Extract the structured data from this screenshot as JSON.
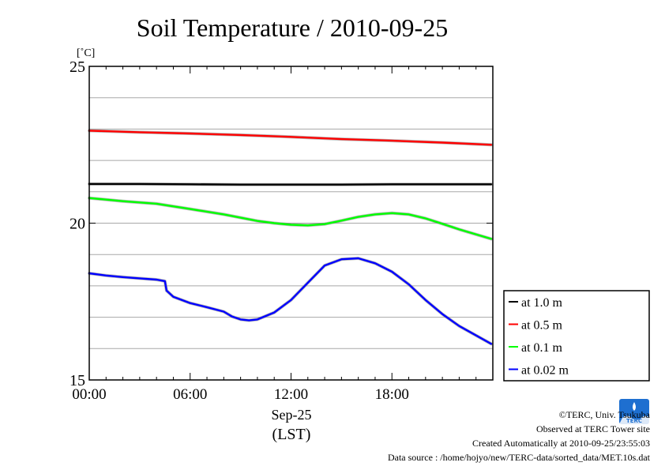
{
  "chart_data": {
    "type": "line",
    "title": "Soil Temperature / 2010-09-25",
    "ylabel": "[˚C]",
    "xlabel_date": "Sep-25",
    "xlabel_tz": "(LST)",
    "ylim": [
      15,
      25
    ],
    "xlim": [
      "00:00",
      "24:00"
    ],
    "y_ticks": [
      15,
      20,
      25
    ],
    "y_gridlines": [
      16,
      17,
      18,
      19,
      20,
      21,
      22,
      23,
      24
    ],
    "x_ticks": [
      "00:00",
      "06:00",
      "12:00",
      "18:00"
    ],
    "grid": true,
    "legend_position": "right",
    "series": [
      {
        "name": "at 1.0 m",
        "color": "#000000",
        "x": [
          0,
          3,
          6,
          9,
          12,
          15,
          18,
          21,
          23.9
        ],
        "values": [
          21.25,
          21.25,
          21.24,
          21.23,
          21.23,
          21.23,
          21.24,
          21.24,
          21.24
        ]
      },
      {
        "name": "at 0.5 m",
        "color": "#ff0000",
        "x": [
          0,
          3,
          6,
          9,
          12,
          15,
          18,
          21,
          23.9
        ],
        "values": [
          22.95,
          22.9,
          22.86,
          22.81,
          22.75,
          22.68,
          22.63,
          22.57,
          22.5
        ]
      },
      {
        "name": "at 0.1 m",
        "color": "#00ff00",
        "x": [
          0,
          2,
          4,
          6,
          8,
          10,
          11,
          12,
          13,
          14,
          15,
          16,
          17,
          18,
          19,
          20,
          21,
          22,
          23.9
        ],
        "values": [
          20.8,
          20.7,
          20.62,
          20.45,
          20.28,
          20.07,
          20.0,
          19.95,
          19.93,
          19.97,
          20.08,
          20.2,
          20.28,
          20.32,
          20.28,
          20.15,
          19.98,
          19.8,
          19.5
        ]
      },
      {
        "name": "at 0.02 m",
        "color": "#0000ff",
        "x": [
          0,
          1,
          2,
          3,
          4,
          4.5,
          4.6,
          5,
          6,
          7,
          8,
          8.5,
          9,
          9.5,
          10,
          11,
          12,
          13,
          14,
          15,
          16,
          17,
          18,
          19,
          20,
          21,
          22,
          23,
          23.9
        ],
        "values": [
          18.4,
          18.33,
          18.28,
          18.24,
          18.2,
          18.15,
          17.85,
          17.65,
          17.45,
          17.32,
          17.18,
          17.02,
          16.93,
          16.9,
          16.93,
          17.15,
          17.55,
          18.1,
          18.65,
          18.85,
          18.88,
          18.72,
          18.45,
          18.05,
          17.55,
          17.1,
          16.72,
          16.42,
          16.15
        ]
      }
    ]
  },
  "footer": {
    "copyright": "©TERC, Univ. Tsukuba",
    "observed": "Observed at TERC Tower site",
    "created": "Created Automatically at 2010-09-25/23:55:03",
    "source": "Data source : /home/hojyo/new/TERC-data/sorted_data/MET.10s.dat",
    "logo_text": "TERC"
  }
}
